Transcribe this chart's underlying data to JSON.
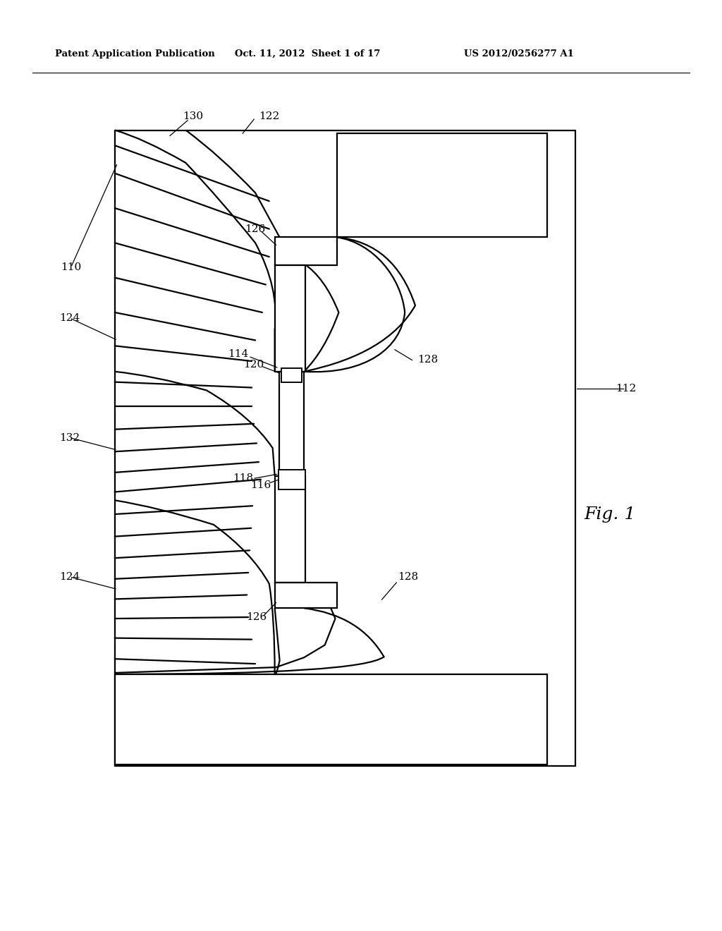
{
  "bg_color": "#ffffff",
  "header_left": "Patent Application Publication",
  "header_mid": "Oct. 11, 2012  Sheet 1 of 17",
  "header_right": "US 2012/0256277 A1",
  "fig_label": "Fig. 1",
  "lw": 1.6,
  "line_color": "#000000",
  "label_fontsize": 11,
  "header_fontsize": 9.5
}
